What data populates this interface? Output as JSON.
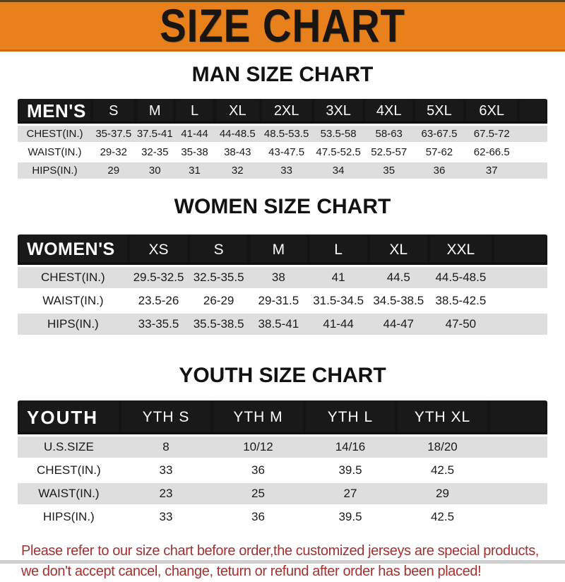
{
  "banner": {
    "title": "SIZE CHART",
    "bg_color": "#e8801b",
    "text_color": "#181512"
  },
  "chart_data": [
    {
      "type": "table",
      "title": "MAN SIZE CHART",
      "header_label": "MEN'S",
      "columns": [
        "S",
        "M",
        "L",
        "XL",
        "2XL",
        "3XL",
        "4XL",
        "5XL",
        "6XL"
      ],
      "rows": [
        {
          "label": "CHEST(IN.)",
          "values": [
            "35-37.5",
            "37.5-41",
            "41-44",
            "44-48.5",
            "48.5-53.5",
            "53.5-58",
            "58-63",
            "63-67.5",
            "67.5-72"
          ]
        },
        {
          "label": "WAIST(IN.)",
          "values": [
            "29-32",
            "32-35",
            "35-38",
            "38-43",
            "43-47.5",
            "47.5-52.5",
            "52.5-57",
            "57-62",
            "62-66.5"
          ]
        },
        {
          "label": "HIPS(IN.)",
          "values": [
            "29",
            "30",
            "31",
            "32",
            "33",
            "34",
            "35",
            "36",
            "37"
          ]
        }
      ]
    },
    {
      "type": "table",
      "title": "WOMEN SIZE CHART",
      "header_label": "WOMEN'S",
      "columns": [
        "XS",
        "S",
        "M",
        "L",
        "XL",
        "XXL"
      ],
      "rows": [
        {
          "label": "CHEST(IN.)",
          "values": [
            "29.5-32.5",
            "32.5-35.5",
            "38",
            "41",
            "44.5",
            "44.5-48.5"
          ]
        },
        {
          "label": "WAIST(IN.)",
          "values": [
            "23.5-26",
            "26-29",
            "29-31.5",
            "31.5-34.5",
            "34.5-38.5",
            "38.5-42.5"
          ]
        },
        {
          "label": "HIPS(IN.)",
          "values": [
            "33-35.5",
            "35.5-38.5",
            "38.5-41",
            "41-44",
            "44-47",
            "47-50"
          ]
        }
      ]
    },
    {
      "type": "table",
      "title": "YOUTH SIZE CHART",
      "header_label": "YOUTH",
      "columns": [
        "YTH S",
        "YTH M",
        "YTH L",
        "YTH XL"
      ],
      "rows": [
        {
          "label": "U.S.SIZE",
          "values": [
            "8",
            "10/12",
            "14/16",
            "18/20"
          ]
        },
        {
          "label": "CHEST(IN.)",
          "values": [
            "33",
            "36",
            "39.5",
            "42.5"
          ]
        },
        {
          "label": "WAIST(IN.)",
          "values": [
            "23",
            "25",
            "27",
            "29"
          ]
        },
        {
          "label": "HIPS(IN.)",
          "values": [
            "33",
            "36",
            "39.5",
            "42.5"
          ]
        }
      ]
    }
  ],
  "footer": {
    "line1": "Please refer to our size chart before order,the customized jerseys are special products,",
    "line2": "we don't accept cancel, change, teturn or refund after order has been placed!",
    "text_color": "#a23030"
  },
  "colors": {
    "header_bar": "#191919",
    "row_gray": "#dedede",
    "banner_orange": "#e8801b"
  }
}
